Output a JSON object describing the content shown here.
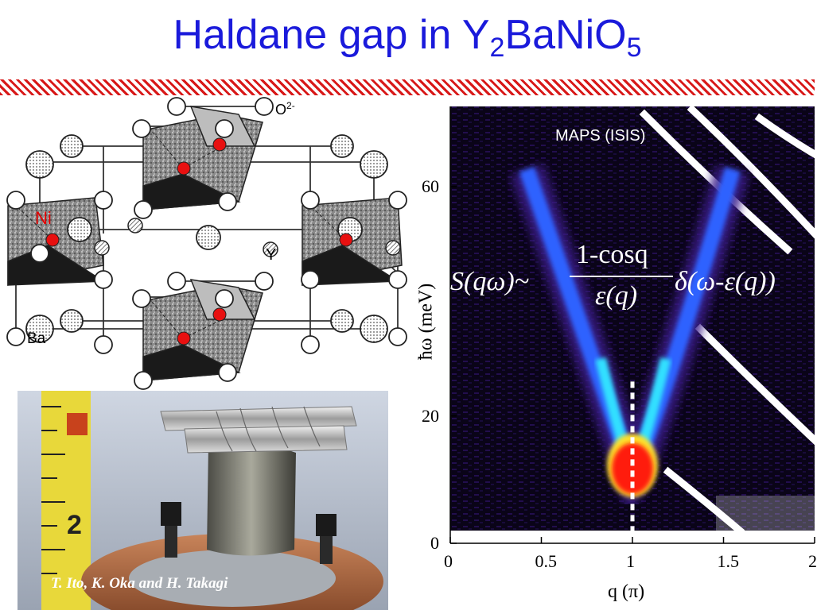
{
  "slide": {
    "title_main": "Haldane gap in Y",
    "title_sub1": "2",
    "title_mid": "BaNiO",
    "title_sub2": "5"
  },
  "crystal": {
    "label_o": "O",
    "label_o_sup": "2-",
    "label_ni": "Ni",
    "label_y": "Y",
    "label_ba": "Ba"
  },
  "photo": {
    "credit": "T. Ito, K. Oka and H. Takagi"
  },
  "plot": {
    "annotation": "MAPS (ISIS)",
    "formula_lhs": "S(qω)~",
    "formula_num": "1-cosq",
    "formula_den": "ε(q)",
    "formula_rhs": "δ(ω-ε(q))"
  },
  "chart_data": {
    "type": "heatmap",
    "title": "",
    "xlabel": "q (π)",
    "ylabel": "ħω (meV)",
    "x_ticks": [
      "0",
      "0.5",
      "1",
      "1.5",
      "2"
    ],
    "y_ticks": [
      "0",
      "20",
      "60"
    ],
    "xlim": [
      0,
      2
    ],
    "ylim": [
      0,
      74
    ],
    "gap_energy_meV": 10,
    "gap_position_q": 1,
    "dispersion_top_meV": 63,
    "colors": {
      "background": "#0a0418",
      "low": "#3a1a8a",
      "mid": "#2e62ff",
      "high": "#ff1a10",
      "branch": "#30e0ff"
    }
  }
}
